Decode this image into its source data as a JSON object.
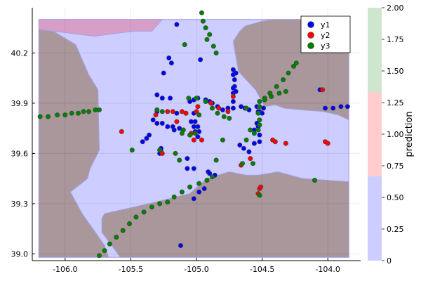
{
  "chart_data": {
    "type": "scatter",
    "title": "",
    "xlabel": "",
    "ylabel": "",
    "xlim": [
      -106.25,
      -103.75
    ],
    "ylim": [
      38.96,
      40.47
    ],
    "x_ticks": [
      -106.0,
      -105.5,
      -105.0,
      -104.5,
      -104.0
    ],
    "x_tick_labels": [
      "-106.0",
      "-105.5",
      "-105.0",
      "-104.5",
      "-104.0"
    ],
    "y_ticks": [
      39.0,
      39.3,
      39.6,
      39.9,
      40.2
    ],
    "y_tick_labels": [
      "39.0",
      "39.3",
      "39.6",
      "39.9",
      "40.2"
    ],
    "grid": true,
    "legend_position": "top-right",
    "colors": {
      "y1": "#0000ff",
      "y2": "#ff0000",
      "y3": "#008000",
      "region_class0": "#cdcdff",
      "region_class1": "#a9979b",
      "region_class2": "#d79fc7",
      "marker_edge": "#444444"
    },
    "background_regions": [
      {
        "class": 1,
        "polygon": [
          [
            -106.2,
            40.34
          ],
          [
            -106.09,
            40.33
          ],
          [
            -105.92,
            40.25
          ],
          [
            -105.82,
            40.07
          ],
          [
            -105.75,
            39.98
          ],
          [
            -105.74,
            39.62
          ],
          [
            -105.81,
            39.51
          ],
          [
            -105.83,
            39.45
          ],
          [
            -105.96,
            39.37
          ],
          [
            -105.87,
            39.24
          ],
          [
            -105.78,
            39.14
          ],
          [
            -105.7,
            39.05
          ],
          [
            -105.67,
            38.98
          ],
          [
            -106.2,
            38.98
          ]
        ]
      },
      {
        "class": 1,
        "polygon": [
          [
            -105.58,
            38.98
          ],
          [
            -105.72,
            39.13
          ],
          [
            -105.72,
            39.21
          ],
          [
            -105.7,
            39.24
          ],
          [
            -105.36,
            39.3
          ],
          [
            -105.05,
            39.36
          ],
          [
            -104.92,
            39.45
          ],
          [
            -104.75,
            39.49
          ],
          [
            -104.62,
            39.47
          ],
          [
            -104.53,
            39.47
          ],
          [
            -104.38,
            39.49
          ],
          [
            -104.19,
            39.45
          ],
          [
            -104.0,
            39.44
          ],
          [
            -103.84,
            39.43
          ],
          [
            -103.84,
            38.98
          ]
        ]
      },
      {
        "class": 1,
        "polygon": [
          [
            -104.68,
            40.09
          ],
          [
            -104.72,
            40.27
          ],
          [
            -104.67,
            40.33
          ],
          [
            -104.63,
            40.36
          ],
          [
            -104.5,
            40.39
          ],
          [
            -104.42,
            40.4
          ],
          [
            -103.84,
            40.4
          ],
          [
            -103.84,
            39.8
          ],
          [
            -103.92,
            39.83
          ],
          [
            -104.03,
            39.85
          ],
          [
            -104.2,
            39.86
          ],
          [
            -104.33,
            39.87
          ],
          [
            -104.4,
            39.89
          ],
          [
            -104.48,
            39.88
          ],
          [
            -104.55,
            39.98
          ]
        ]
      },
      {
        "class": 2,
        "polygon": [
          [
            -106.2,
            40.4
          ],
          [
            -105.26,
            40.4
          ],
          [
            -105.34,
            40.33
          ],
          [
            -105.48,
            40.33
          ],
          [
            -105.78,
            40.3
          ],
          [
            -106.09,
            40.33
          ],
          [
            -106.2,
            40.34
          ]
        ]
      }
    ],
    "series": [
      {
        "name": "y1",
        "points": [
          [
            -104.93,
            39.92
          ],
          [
            -104.88,
            39.9
          ],
          [
            -104.84,
            39.88
          ],
          [
            -104.8,
            39.86
          ],
          [
            -104.76,
            39.87
          ],
          [
            -104.72,
            39.87
          ],
          [
            -104.72,
            39.91
          ],
          [
            -104.72,
            39.96
          ],
          [
            -104.71,
            40.0
          ],
          [
            -104.71,
            40.04
          ],
          [
            -104.72,
            40.07
          ],
          [
            -104.72,
            40.1
          ],
          [
            -104.7,
            39.97
          ],
          [
            -104.9,
            39.91
          ],
          [
            -105.05,
            39.91
          ],
          [
            -105.02,
            39.92
          ],
          [
            -104.99,
            39.93
          ],
          [
            -105.3,
            39.95
          ],
          [
            -105.26,
            39.93
          ],
          [
            -105.2,
            39.93
          ],
          [
            -105.33,
            39.8
          ],
          [
            -105.3,
            39.78
          ],
          [
            -105.26,
            39.78
          ],
          [
            -105.22,
            39.76
          ],
          [
            -105.18,
            39.76
          ],
          [
            -105.17,
            39.74
          ],
          [
            -105.13,
            39.75
          ],
          [
            -105.04,
            39.79
          ],
          [
            -105.01,
            39.79
          ],
          [
            -104.99,
            39.76
          ],
          [
            -104.98,
            39.73
          ],
          [
            -104.99,
            39.7
          ],
          [
            -105.01,
            39.73
          ],
          [
            -105.02,
            39.76
          ],
          [
            -105.02,
            39.84
          ],
          [
            -105.08,
            39.84
          ],
          [
            -105.15,
            39.84
          ],
          [
            -105.3,
            39.85
          ],
          [
            -105.36,
            39.71
          ],
          [
            -105.38,
            39.69
          ],
          [
            -105.41,
            39.67
          ],
          [
            -105.27,
            39.63
          ],
          [
            -105.27,
            39.61
          ],
          [
            -105.28,
            39.6
          ],
          [
            -105.07,
            39.57
          ],
          [
            -105.07,
            39.51
          ],
          [
            -105.02,
            39.51
          ],
          [
            -104.91,
            39.49
          ],
          [
            -104.86,
            39.47
          ],
          [
            -104.9,
            39.48
          ],
          [
            -105.02,
            39.33
          ],
          [
            -104.94,
            39.39
          ],
          [
            -104.98,
            39.37
          ],
          [
            -105.12,
            39.05
          ],
          [
            -104.6,
            39.61
          ],
          [
            -104.64,
            39.63
          ],
          [
            -104.67,
            39.65
          ],
          [
            -104.52,
            39.67
          ],
          [
            -104.52,
            39.71
          ],
          [
            -104.56,
            39.66
          ],
          [
            -104.53,
            39.76
          ],
          [
            -104.56,
            39.74
          ],
          [
            -104.54,
            39.78
          ],
          [
            -104.52,
            39.85
          ],
          [
            -104.5,
            39.84
          ],
          [
            -104.53,
            39.85
          ],
          [
            -104.49,
            39.87
          ],
          [
            -104.54,
            39.88
          ],
          [
            -104.6,
            39.86
          ],
          [
            -104.63,
            39.87
          ],
          [
            -104.66,
            39.88
          ],
          [
            -104.02,
            39.87
          ],
          [
            -103.96,
            39.87
          ],
          [
            -103.9,
            39.88
          ],
          [
            -103.85,
            39.88
          ],
          [
            -104.06,
            39.98
          ],
          [
            -104.7,
            40.08
          ],
          [
            -104.72,
            39.99
          ],
          [
            -105.21,
            40.17
          ],
          [
            -105.19,
            40.14
          ],
          [
            -104.97,
            40.16
          ],
          [
            -105.15,
            40.37
          ],
          [
            -105.25,
            40.08
          ]
        ]
      },
      {
        "name": "y2",
        "points": [
          [
            -104.89,
            39.9
          ],
          [
            -104.83,
            39.87
          ],
          [
            -104.76,
            39.85
          ],
          [
            -105.18,
            39.85
          ],
          [
            -105.11,
            39.85
          ],
          [
            -105.08,
            39.84
          ],
          [
            -105.15,
            39.79
          ],
          [
            -105.04,
            39.72
          ],
          [
            -105.02,
            39.68
          ],
          [
            -104.96,
            39.68
          ],
          [
            -105.57,
            39.73
          ],
          [
            -105.31,
            39.83
          ],
          [
            -105.22,
            39.85
          ],
          [
            -104.72,
            39.94
          ],
          [
            -104.99,
            39.88
          ],
          [
            -105.0,
            39.85
          ],
          [
            -104.42,
            39.68
          ],
          [
            -104.4,
            39.67
          ],
          [
            -104.32,
            39.66
          ],
          [
            -104.02,
            39.67
          ],
          [
            -104.0,
            39.66
          ],
          [
            -104.04,
            39.98
          ],
          [
            -104.52,
            39.39
          ],
          [
            -104.51,
            39.4
          ],
          [
            -104.53,
            39.36
          ],
          [
            -104.66,
            39.53
          ],
          [
            -104.59,
            39.57
          ],
          [
            -105.26,
            39.6
          ]
        ]
      },
      {
        "name": "y3",
        "points": [
          [
            -106.19,
            39.82
          ],
          [
            -106.13,
            39.82
          ],
          [
            -106.06,
            39.83
          ],
          [
            -106.0,
            39.83
          ],
          [
            -105.95,
            39.84
          ],
          [
            -105.9,
            39.84
          ],
          [
            -105.86,
            39.85
          ],
          [
            -105.82,
            39.85
          ],
          [
            -105.77,
            39.86
          ],
          [
            -105.74,
            39.86
          ],
          [
            -105.74,
            38.99
          ],
          [
            -105.7,
            39.02
          ],
          [
            -105.66,
            39.06
          ],
          [
            -105.61,
            39.1
          ],
          [
            -105.56,
            39.14
          ],
          [
            -105.51,
            39.18
          ],
          [
            -105.46,
            39.22
          ],
          [
            -105.4,
            39.25
          ],
          [
            -105.34,
            39.28
          ],
          [
            -105.28,
            39.3
          ],
          [
            -105.22,
            39.31
          ],
          [
            -105.17,
            39.34
          ],
          [
            -105.11,
            39.37
          ],
          [
            -105.05,
            39.4
          ],
          [
            -104.98,
            39.42
          ],
          [
            -104.92,
            39.44
          ],
          [
            -104.88,
            39.46
          ],
          [
            -104.62,
            39.68
          ],
          [
            -104.59,
            39.74
          ],
          [
            -104.56,
            39.72
          ],
          [
            -104.53,
            39.74
          ],
          [
            -104.52,
            39.77
          ],
          [
            -104.52,
            39.8
          ],
          [
            -104.53,
            39.84
          ],
          [
            -104.52,
            39.88
          ],
          [
            -104.52,
            39.91
          ],
          [
            -104.48,
            39.93
          ],
          [
            -104.44,
            39.96
          ],
          [
            -104.39,
            40.0
          ],
          [
            -104.34,
            40.04
          ],
          [
            -104.3,
            40.08
          ],
          [
            -104.26,
            40.12
          ],
          [
            -104.24,
            40.14
          ],
          [
            -104.48,
            39.92
          ],
          [
            -104.43,
            39.94
          ],
          [
            -104.37,
            39.96
          ],
          [
            -104.32,
            39.97
          ],
          [
            -104.75,
            39.81
          ],
          [
            -104.79,
            39.82
          ],
          [
            -104.84,
            39.84
          ],
          [
            -104.88,
            39.87
          ],
          [
            -104.93,
            39.91
          ],
          [
            -105.0,
            39.93
          ],
          [
            -105.06,
            39.93
          ],
          [
            -105.1,
            39.74
          ],
          [
            -105.05,
            39.71
          ],
          [
            -105.01,
            39.72
          ],
          [
            -105.11,
            39.72
          ],
          [
            -105.28,
            39.62
          ],
          [
            -105.16,
            39.6
          ],
          [
            -105.13,
            39.56
          ],
          [
            -105.49,
            39.62
          ],
          [
            -105.3,
            39.86
          ],
          [
            -105.26,
            39.85
          ],
          [
            -104.8,
            39.68
          ],
          [
            -104.85,
            39.56
          ],
          [
            -104.57,
            39.54
          ],
          [
            -104.65,
            39.54
          ],
          [
            -104.1,
            39.44
          ],
          [
            -104.52,
            39.35
          ],
          [
            -104.98,
            39.83
          ],
          [
            -104.62,
            39.87
          ],
          [
            -104.92,
            40.28
          ],
          [
            -104.9,
            40.31
          ],
          [
            -104.93,
            40.35
          ],
          [
            -104.95,
            40.39
          ],
          [
            -104.87,
            40.24
          ],
          [
            -104.85,
            40.2
          ],
          [
            -104.96,
            40.44
          ],
          [
            -105.09,
            40.25
          ],
          [
            -104.44,
            39.96
          ]
        ]
      }
    ],
    "colorbar": {
      "label": "prediction",
      "range": [
        0,
        2
      ],
      "ticks": [
        0,
        0.25,
        0.5,
        0.75,
        1.0,
        1.25,
        1.5,
        1.75,
        2.0
      ],
      "tick_labels": [
        "0",
        "0.25",
        "0.50",
        "0.75",
        "1.00",
        "1.25",
        "1.50",
        "1.75",
        "2.00"
      ],
      "bands": [
        {
          "from": 0,
          "to": 0.667,
          "color": "#cdcdff"
        },
        {
          "from": 0.667,
          "to": 1.333,
          "color": "#ffcdcd"
        },
        {
          "from": 1.333,
          "to": 2.0,
          "color": "#cde6cd"
        }
      ]
    }
  }
}
